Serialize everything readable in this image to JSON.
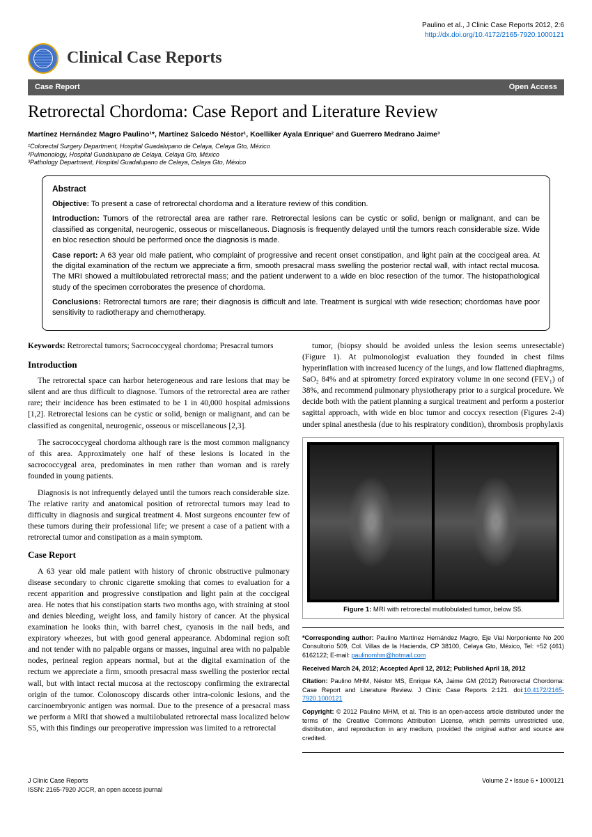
{
  "citation_line": "Paulino et al., J Clinic Case Reports 2012, 2:6",
  "doi_url": "http://dx.doi.org/10.4172/2165-7920.1000121",
  "journal_title": "Clinical Case Reports",
  "bar_left": "Case Report",
  "bar_right": "Open Access",
  "article_title": "Retrorectal Chordoma: Case Report and Literature Review",
  "authors": "Martínez Hernández Magro Paulino¹*, Martínez Salcedo Néstor¹, Koelliker Ayala Enrique² and Guerrero Medrano Jaime³",
  "affiliations": [
    "¹Colorectal Surgery Department, Hospital Guadalupano de Celaya, Celaya Gto, México",
    "²Pulmonology, Hospital Guadalupano de Celaya, Celaya Gto, México",
    "³Pathology Department, Hospital Guadalupano de Celaya, Celaya Gto, México"
  ],
  "abstract": {
    "heading": "Abstract",
    "objective_label": "Objective:",
    "objective": "To present a case of retrorectal chordoma and a literature review of this condition.",
    "intro_label": "Introduction:",
    "intro": "Tumors of the retrorectal area are rather rare. Retrorectal lesions can be cystic or solid, benign or malignant, and can be classified as congenital, neurogenic, osseous or miscellaneous. Diagnosis is frequently delayed until the tumors reach considerable size. Wide en bloc resection should be performed once the diagnosis is made.",
    "case_label": "Case report:",
    "case": "A 63 year old male patient, who complaint of progressive and recent onset constipation, and light pain at the coccigeal area. At the digital examination of the rectum we appreciate a firm, smooth presacral mass swelling the posterior rectal wall, with intact rectal mucosa. The MRI showed a multilobulated retrorectal mass; and the patient underwent to a wide en bloc resection of the tumor. The histopathological study of the specimen corroborates the presence of chordoma.",
    "concl_label": "Conclusions:",
    "concl": "Retrorectal tumors are rare; their diagnosis is difficult and late. Treatment is surgical with wide resection; chordomas have poor sensitivity to radiotherapy and chemotherapy."
  },
  "keywords_label": "Keywords:",
  "keywords": "Retrorectal tumors; Sacrococcygeal chordoma; Presacral tumors",
  "sections": {
    "intro_h": "Introduction",
    "intro_p1": "The retrorectal space can harbor heterogeneous and rare lesions that may be silent and are thus difficult to diagnose. Tumors of the retrorectal area are rather rare; their incidence has been estimated to be 1 in 40,000 hospital admissions [1,2]. Retrorectal lesions can be cystic or solid, benign or malignant, and can be classified as congenital, neurogenic, osseous or miscellaneous [2,3].",
    "intro_p2": "The sacrococcygeal chordoma although rare is the most common malignancy of this area. Approximately one half of these lesions is located in the sacrococcygeal area, predominates in men rather than woman and is rarely founded in young patients.",
    "intro_p3": "Diagnosis is not infrequently delayed until the tumors reach considerable size. The relative rarity and anatomical position of retrorectal tumors may lead to difficulty in diagnosis and surgical treatment 4. Most surgeons encounter few of these tumors during their professional life; we present a case of a patient with a retrorectal tumor and constipation as a main symptom.",
    "case_h": "Case Report",
    "case_p1": "A 63 year old male patient with history of chronic obstructive pulmonary disease secondary to chronic cigarette smoking that comes to evaluation for a recent apparition and progressive constipation and light pain at the coccigeal area. He notes that his constipation starts two months ago, with straining at stool and denies bleeding, weight loss, and family history of cancer. At the physical examination he looks thin, with barrel chest, cyanosis in the nail beds, and expiratory wheezes, but with good general appearance. Abdominal region soft and not tender with no palpable organs or masses, inguinal area with no palpable nodes, perineal region appears normal, but at the digital examination of the rectum we appreciate a firm, smooth presacral mass swelling the posterior rectal wall, but with intact rectal mucosa at the rectoscopy confirming the extrarectal origin of the tumor. Colonoscopy discards other intra-colonic lesions, and the carcinoembryonic antigen was normal. Due to the presence of a presacral mass we perform a MRI that showed a multilobulated retrorectal mass localized below S5, with this findings our preoperative impression was limited to a retrorectal",
    "col2_p1": "tumor, (biopsy should be avoided unless the lesion seems unresectable) (Figure 1). At pulmonologist evaluation they founded in chest films hyperinflation with increased lucency of the lungs, and low flattened diaphragms, SaO₂ 84% and at spirometry forced expiratory volume in one second (FEV₁) of 38%, and recommend pulmonary physiotherapy prior to a surgical procedure. We decide both with the patient planning a surgical treatment and perform a posterior sagittal approach, with wide en bloc tumor and coccyx resection (Figures 2-4) under spinal anesthesia (due to his respiratory condition), thrombosis prophylaxis"
  },
  "figure1": {
    "label": "Figure 1:",
    "caption": "MRI with retrorectal mutilobulated tumor, below S5."
  },
  "info": {
    "corr_label": "*Corresponding author:",
    "corr": "Paulino Martínez Hernández Magro, Eje Vial Norponiente No 200 Consultorio 509, Col. Villas de la Hacienda, CP 38100, Celaya Gto, México, Tel: +52 (461) 6162122; E-mail: ",
    "corr_email": "paulinomhm@hotmail.com",
    "dates": "Received March 24, 2012; Accepted April 12, 2012; Published April 18, 2012",
    "cit_label": "Citation:",
    "cit": "Paulino MHM, Néstor MS, Enrique KA, Jaime GM (2012) Retrorectal Chordoma: Case Report and Literature Review. J Clinic Case Reports 2:121. doi:",
    "cit_doi": "10.4172/2165-7920.1000121",
    "copy_label": "Copyright:",
    "copy": "© 2012 Paulino MHM, et al. This is an open-access article distributed under the terms of the Creative Commons Attribution License, which permits unrestricted use, distribution, and reproduction in any medium, provided the original author and source are credited."
  },
  "footer": {
    "left1": "J Clinic Case Reports",
    "left2": "ISSN: 2165-7920 JCCR, an open access journal",
    "right": "Volume 2 • Issue 6 • 1000121"
  }
}
